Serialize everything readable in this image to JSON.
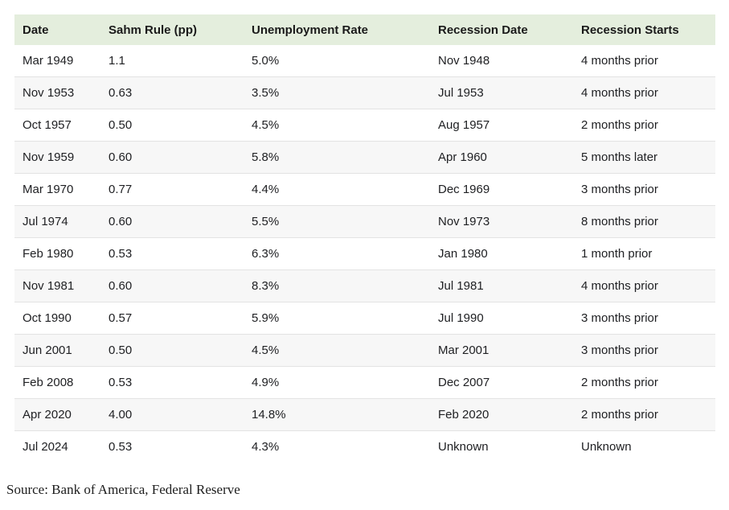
{
  "table": {
    "headers": [
      "Date",
      "Sahm Rule (pp)",
      "Unemployment Rate",
      "Recession Date",
      "Recession Starts"
    ],
    "rows": [
      [
        "Mar 1949",
        "1.1",
        "5.0%",
        "Nov 1948",
        "4 months prior"
      ],
      [
        "Nov 1953",
        "0.63",
        "3.5%",
        "Jul 1953",
        "4 months prior"
      ],
      [
        "Oct 1957",
        "0.50",
        "4.5%",
        "Aug 1957",
        "2 months prior"
      ],
      [
        "Nov 1959",
        "0.60",
        "5.8%",
        "Apr 1960",
        "5 months later"
      ],
      [
        "Mar 1970",
        "0.77",
        "4.4%",
        "Dec 1969",
        "3 months prior"
      ],
      [
        "Jul 1974",
        "0.60",
        "5.5%",
        "Nov 1973",
        "8 months prior"
      ],
      [
        "Feb 1980",
        "0.53",
        "6.3%",
        "Jan 1980",
        "1 month prior"
      ],
      [
        "Nov 1981",
        "0.60",
        "8.3%",
        "Jul 1981",
        "4 months prior"
      ],
      [
        "Oct 1990",
        "0.57",
        "5.9%",
        "Jul 1990",
        "3 months prior"
      ],
      [
        "Jun 2001",
        "0.50",
        "4.5%",
        "Mar 2001",
        "3 months prior"
      ],
      [
        "Feb 2008",
        "0.53",
        "4.9%",
        "Dec 2007",
        "2 months prior"
      ],
      [
        "Apr 2020",
        "4.00",
        "14.8%",
        "Feb 2020",
        "2 months prior"
      ],
      [
        "Jul 2024",
        "0.53",
        "4.3%",
        "Unknown",
        "Unknown"
      ]
    ]
  },
  "source_note": "Source: Bank of America, Federal Reserve",
  "colors": {
    "header_bg": "#e4eedd",
    "row_alt_bg": "#f7f7f7",
    "border": "#e3e3e3",
    "text": "#202124"
  },
  "chart_data": {
    "type": "table",
    "title": "",
    "columns": [
      "Date",
      "Sahm Rule (pp)",
      "Unemployment Rate",
      "Recession Date",
      "Recession Starts"
    ],
    "rows": [
      [
        "Mar 1949",
        1.1,
        "5.0%",
        "Nov 1948",
        "4 months prior"
      ],
      [
        "Nov 1953",
        0.63,
        "3.5%",
        "Jul 1953",
        "4 months prior"
      ],
      [
        "Oct 1957",
        0.5,
        "4.5%",
        "Aug 1957",
        "2 months prior"
      ],
      [
        "Nov 1959",
        0.6,
        "5.8%",
        "Apr 1960",
        "5 months later"
      ],
      [
        "Mar 1970",
        0.77,
        "4.4%",
        "Dec 1969",
        "3 months prior"
      ],
      [
        "Jul 1974",
        0.6,
        "5.5%",
        "Nov 1973",
        "8 months prior"
      ],
      [
        "Feb 1980",
        0.53,
        "6.3%",
        "Jan 1980",
        "1 month prior"
      ],
      [
        "Nov 1981",
        0.6,
        "8.3%",
        "Jul 1981",
        "4 months prior"
      ],
      [
        "Oct 1990",
        0.57,
        "5.9%",
        "Jul 1990",
        "3 months prior"
      ],
      [
        "Jun 2001",
        0.5,
        "4.5%",
        "Mar 2001",
        "3 months prior"
      ],
      [
        "Feb 2008",
        0.53,
        "4.9%",
        "Dec 2007",
        "2 months prior"
      ],
      [
        "Apr 2020",
        4.0,
        "14.8%",
        "Feb 2020",
        "2 months prior"
      ],
      [
        "Jul 2024",
        0.53,
        "4.3%",
        "Unknown",
        "Unknown"
      ]
    ],
    "source": "Source: Bank of America, Federal Reserve"
  }
}
